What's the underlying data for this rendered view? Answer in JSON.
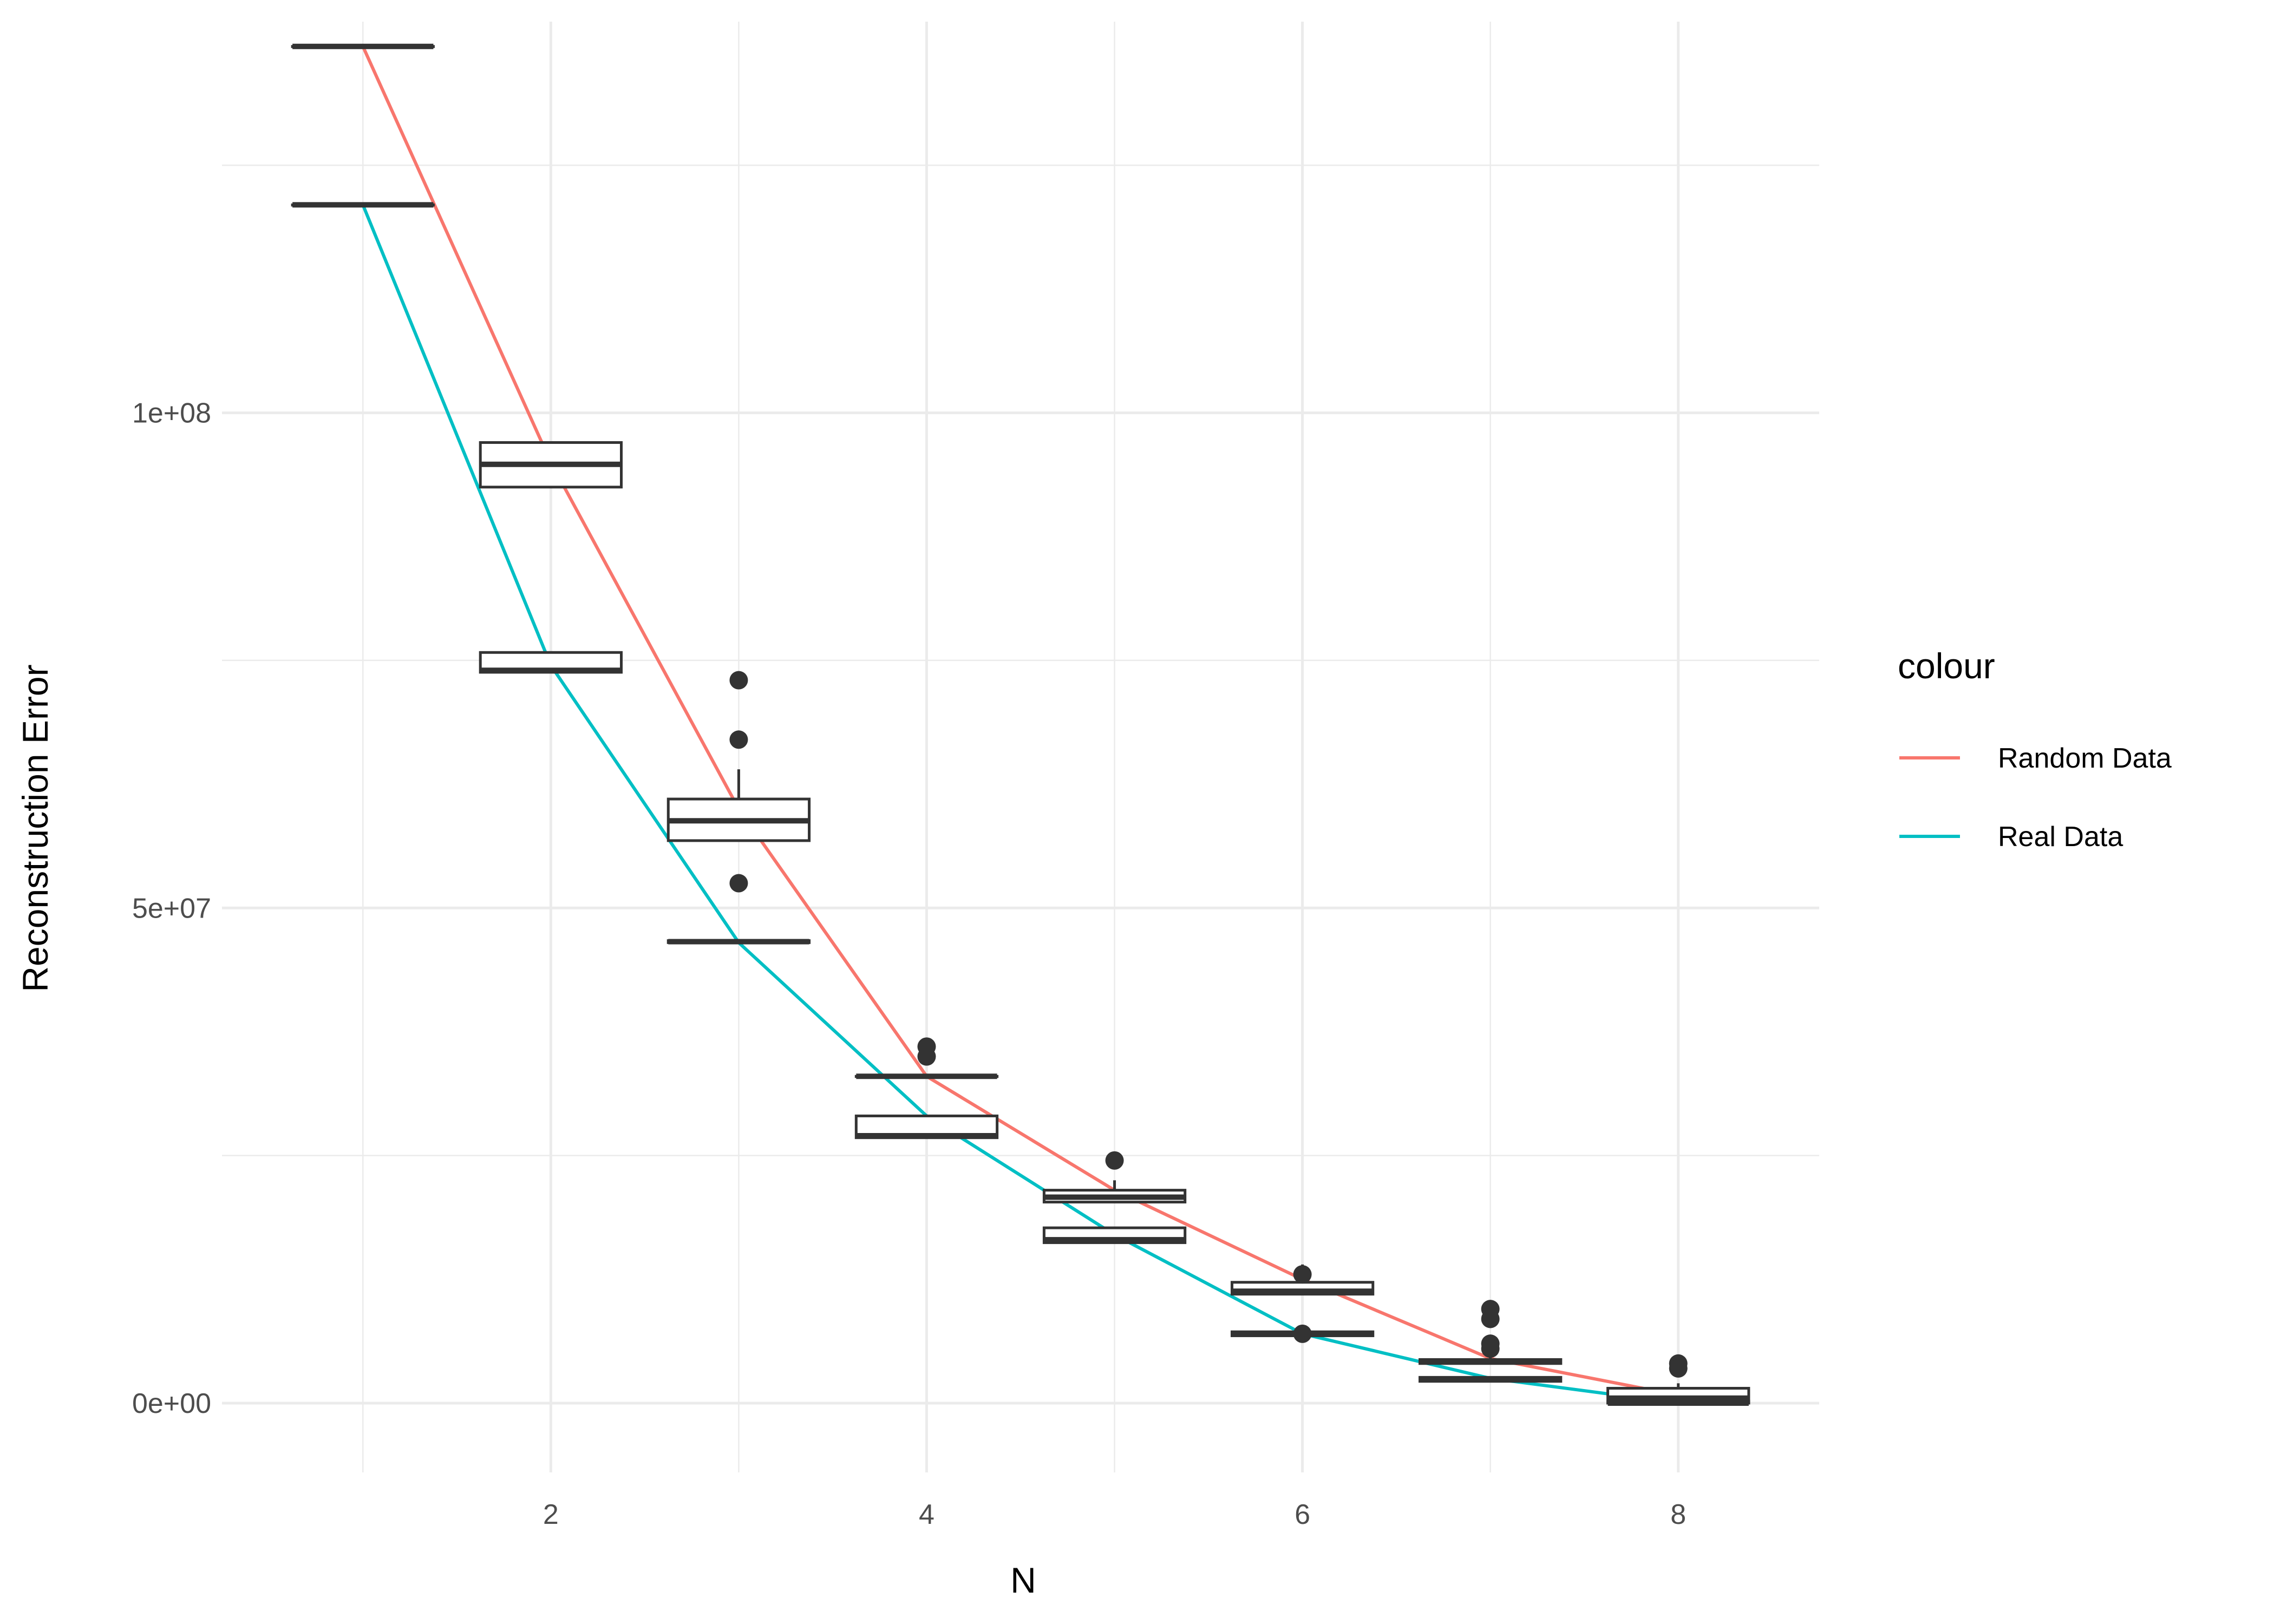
{
  "chart_data": {
    "type": "boxplot+line",
    "xlabel": "N",
    "ylabel": "Reconstruction Error",
    "x_ticks": [
      2,
      4,
      6,
      8
    ],
    "x_tick_labels": [
      "2",
      "4",
      "6",
      "8"
    ],
    "y_ticks": [
      0,
      50000000,
      100000000
    ],
    "y_tick_labels": [
      "0e+00",
      "5e+07",
      "1e+08"
    ],
    "xlim": [
      0.25,
      8.75
    ],
    "ylim": [
      -7000000,
      139500000
    ],
    "grid": true,
    "legend": {
      "title": "colour",
      "placement": "right",
      "entries": [
        {
          "label": "Random Data",
          "color": "#F8766D"
        },
        {
          "label": "Real Data",
          "color": "#00BFC4"
        }
      ]
    },
    "series": [
      {
        "name": "Random Data",
        "color": "#F8766D",
        "x": [
          1,
          2,
          3,
          4,
          5,
          6,
          7,
          8
        ],
        "mean": [
          137000000,
          95000000,
          60000000,
          33000000,
          21500000,
          12500000,
          4500000,
          800000
        ],
        "boxes": [
          {
            "x": 1,
            "q1": 137000000,
            "median": 137000000,
            "q3": 137000000,
            "whisker_low": 137000000,
            "whisker_high": 137000000,
            "outliers": []
          },
          {
            "x": 2,
            "q1": 92500000,
            "median": 94800000,
            "q3": 97000000,
            "whisker_low": 92500000,
            "whisker_high": 97000000,
            "outliers": []
          },
          {
            "x": 3,
            "q1": 56800000,
            "median": 58800000,
            "q3": 61000000,
            "whisker_low": 56800000,
            "whisker_high": 64000000,
            "outliers": [
              73000000,
              67000000,
              52500000
            ]
          },
          {
            "x": 4,
            "q1": 33000000,
            "median": 33000000,
            "q3": 33000000,
            "whisker_low": 33000000,
            "whisker_high": 33000000,
            "outliers": [
              36000000,
              35000000
            ]
          },
          {
            "x": 5,
            "q1": 20300000,
            "median": 20800000,
            "q3": 21500000,
            "whisker_low": 20300000,
            "whisker_high": 22500000,
            "outliers": [
              24500000
            ]
          },
          {
            "x": 6,
            "q1": 11000000,
            "median": 11300000,
            "q3": 12200000,
            "whisker_low": 11000000,
            "whisker_high": 14000000,
            "outliers": [
              13000000
            ]
          },
          {
            "x": 7,
            "q1": 4000000,
            "median": 4200000,
            "q3": 4400000,
            "whisker_low": 4000000,
            "whisker_high": 5000000,
            "outliers": [
              9500000,
              8500000,
              6000000,
              5500000
            ]
          },
          {
            "x": 8,
            "q1": 0,
            "median": 500000,
            "q3": 1500000,
            "whisker_low": 0,
            "whisker_high": 2000000,
            "outliers": [
              4000000,
              3500000
            ]
          }
        ]
      },
      {
        "name": "Real Data",
        "color": "#00BFC4",
        "x": [
          1,
          2,
          3,
          4,
          5,
          6,
          7,
          8
        ],
        "mean": [
          121000000,
          74500000,
          46500000,
          29000000,
          17000000,
          7000000,
          2500000,
          0
        ],
        "boxes": [
          {
            "x": 1,
            "q1": 121000000,
            "median": 121000000,
            "q3": 121000000,
            "whisker_low": 121000000,
            "whisker_high": 121000000,
            "outliers": []
          },
          {
            "x": 2,
            "q1": 73800000,
            "median": 74000000,
            "q3": 75800000,
            "whisker_low": 73800000,
            "whisker_high": 75800000,
            "outliers": []
          },
          {
            "x": 3,
            "q1": 46500000,
            "median": 46600000,
            "q3": 46700000,
            "whisker_low": 46500000,
            "whisker_high": 46700000,
            "outliers": []
          },
          {
            "x": 4,
            "q1": 26800000,
            "median": 27000000,
            "q3": 29000000,
            "whisker_low": 26800000,
            "whisker_high": 29000000,
            "outliers": []
          },
          {
            "x": 5,
            "q1": 16200000,
            "median": 16500000,
            "q3": 17700000,
            "whisker_low": 16200000,
            "whisker_high": 17700000,
            "outliers": []
          },
          {
            "x": 6,
            "q1": 6800000,
            "median": 7000000,
            "q3": 7200000,
            "whisker_low": 6800000,
            "whisker_high": 7200000,
            "outliers": [
              7000000
            ]
          },
          {
            "x": 7,
            "q1": 2200000,
            "median": 2400000,
            "q3": 2600000,
            "whisker_low": 2200000,
            "whisker_high": 2600000,
            "outliers": []
          },
          {
            "x": 8,
            "q1": 0,
            "median": 0,
            "q3": 200000,
            "whisker_low": 0,
            "whisker_high": 200000,
            "outliers": []
          }
        ]
      }
    ]
  }
}
